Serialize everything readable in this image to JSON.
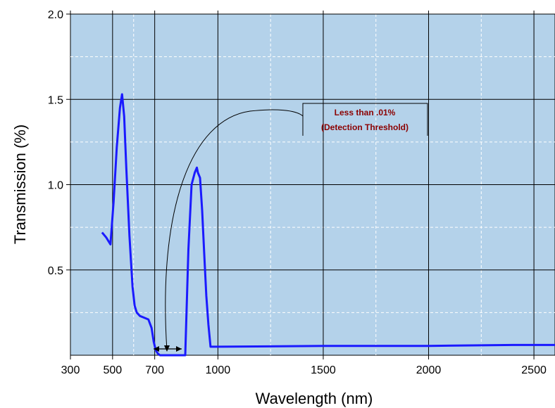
{
  "chart_data": {
    "type": "line",
    "title": "",
    "xlabel": "Wavelength (nm)",
    "ylabel": "Transmission (%)",
    "xlim": [
      300,
      2600
    ],
    "ylim": [
      0,
      2.0
    ],
    "x_ticks": [
      300,
      500,
      700,
      1000,
      1500,
      2000,
      2500
    ],
    "x_tick_labels": [
      "300",
      "500",
      "700",
      "1000",
      "1500",
      "2000",
      "2500"
    ],
    "x_grid": [
      500,
      700,
      1000,
      1500,
      2000,
      2500
    ],
    "y_ticks": [
      0.5,
      1.0,
      1.5,
      2.0
    ],
    "y_tick_labels": [
      "0.5",
      "1.0",
      "1.5",
      "2.0"
    ],
    "grid": true,
    "colors": {
      "plot_bg": "#b4d2ea",
      "series": "#1a1aff",
      "grid": "#000000",
      "minor_grid": "#ffffff",
      "annotation": "#8b0000"
    },
    "series": [
      {
        "x": [
          450,
          470,
          490,
          505,
          520,
          535,
          545,
          555,
          565,
          580,
          595,
          605,
          615,
          630,
          650,
          670,
          685,
          695,
          705,
          715,
          725,
          740,
          780,
          830,
          845,
          860,
          875,
          890,
          900,
          905,
          915,
          925,
          935,
          945,
          955,
          965,
          980,
          1000,
          1500,
          2000,
          2400,
          2600
        ],
        "y": [
          0.72,
          0.69,
          0.65,
          0.9,
          1.22,
          1.45,
          1.53,
          1.4,
          1.1,
          0.7,
          0.4,
          0.29,
          0.25,
          0.23,
          0.22,
          0.21,
          0.16,
          0.08,
          0.03,
          0.01,
          0.0,
          0.0,
          0.0,
          0.0,
          0.0,
          0.62,
          1.0,
          1.07,
          1.1,
          1.07,
          1.04,
          0.85,
          0.6,
          0.35,
          0.18,
          0.05,
          0.05,
          0.05,
          0.055,
          0.055,
          0.06,
          0.06
        ]
      }
    ],
    "annotation": {
      "lines": [
        "Less than .01%",
        "(Detection Threshold)"
      ],
      "range_nm": [
        700,
        850
      ]
    }
  }
}
